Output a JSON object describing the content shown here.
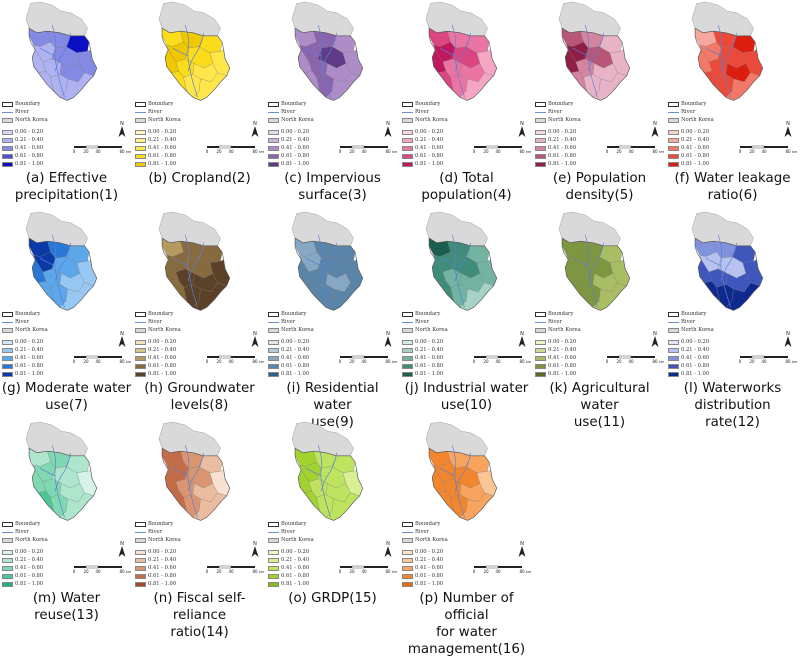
{
  "legend_common": {
    "boundary": "Boundary",
    "river": "River",
    "north_korea": "North Korea",
    "classes": [
      "0.00 - 0.20",
      "0.21 - 0.40",
      "0.41 - 0.60",
      "0.61 - 0.80",
      "0.81 - 1.00"
    ],
    "north_label": "N",
    "scale_ticks": [
      "0",
      "20",
      "40",
      "80"
    ],
    "scale_unit": "km"
  },
  "panels": [
    {
      "caption": [
        "(a) Effective",
        "precipitation(1)"
      ],
      "colors": [
        "#d6d8f8",
        "#aeb2f0",
        "#8489e4",
        "#4a4fd6",
        "#0b10c4"
      ]
    },
    {
      "caption": [
        "(b) Cropland(2)"
      ],
      "colors": [
        "#fff7c0",
        "#fff08a",
        "#ffe74a",
        "#fadc1a",
        "#f0c800"
      ]
    },
    {
      "caption": [
        "(c) Impervious",
        "surface(3)"
      ],
      "colors": [
        "#e6d9ee",
        "#cbb4dd",
        "#ad8cc8",
        "#8a64ad",
        "#5e3c88"
      ]
    },
    {
      "caption": [
        "(d) Total",
        "population(4)"
      ],
      "colors": [
        "#fbd3e2",
        "#f4a6c3",
        "#ea74a2",
        "#db4581",
        "#c0185c"
      ]
    },
    {
      "caption": [
        "(e) Population",
        "density(5)"
      ],
      "colors": [
        "#f6dbe5",
        "#e8b3c6",
        "#d5849f",
        "#b95576",
        "#8f1f45"
      ]
    },
    {
      "caption": [
        "(f) Water leakage",
        "ratio(6)"
      ],
      "colors": [
        "#fbd3cd",
        "#f7a79b",
        "#f27868",
        "#eb4a3a",
        "#dc1e10"
      ]
    },
    {
      "caption": [
        "(g) Moderate water",
        "use(7)"
      ],
      "colors": [
        "#cfe6fb",
        "#96c8f3",
        "#5ca6ea",
        "#2a78d6",
        "#0a3aa8"
      ]
    },
    {
      "caption": [
        "(h) Groundwater",
        "levels(8)"
      ],
      "colors": [
        "#efe6bd",
        "#d9c68a",
        "#b59a5e",
        "#876a3e",
        "#5a4128"
      ]
    },
    {
      "caption": [
        "(i) Residential water",
        "use(9)"
      ],
      "colors": [
        "#dbe6ef",
        "#b3c9dc",
        "#86a8c4",
        "#5a85a8",
        "#2f5f85"
      ]
    },
    {
      "caption": [
        "(j) Industrial water",
        "use(10)"
      ],
      "colors": [
        "#d5ece6",
        "#a6d3c6",
        "#72b3a2",
        "#408c7a",
        "#1a5e4f"
      ]
    },
    {
      "caption": [
        "(k) Agricultural water",
        "use(11)"
      ],
      "colors": [
        "#eaf0c8",
        "#cfdc95",
        "#a9bd64",
        "#7e9640",
        "#566b24"
      ]
    },
    {
      "caption": [
        "(l) Waterworks",
        "distribution rate(12)"
      ],
      "colors": [
        "#e2e6fa",
        "#b8c2ef",
        "#8192dc",
        "#3f56bd",
        "#0f2a8e"
      ]
    },
    {
      "caption": [
        "(m) Water reuse(13)"
      ],
      "colors": [
        "#d7f2e6",
        "#aee6cd",
        "#7fd8b1",
        "#4cc694",
        "#22b179"
      ]
    },
    {
      "caption": [
        "(n) Fiscal self-reliance",
        "ratio(14)"
      ],
      "colors": [
        "#f8e1d2",
        "#ebbda0",
        "#d99470",
        "#c46c48",
        "#a4492b"
      ]
    },
    {
      "caption": [
        "(o) GRDP(15)"
      ],
      "colors": [
        "#eef8c8",
        "#d8ef94",
        "#bee35e",
        "#a2d230",
        "#86bd10"
      ]
    },
    {
      "caption": [
        "(p) Number of official",
        "for water",
        "management(16)"
      ],
      "colors": [
        "#fde3cc",
        "#fbc596",
        "#f8a45f",
        "#f2862f",
        "#e8680e"
      ]
    }
  ]
}
